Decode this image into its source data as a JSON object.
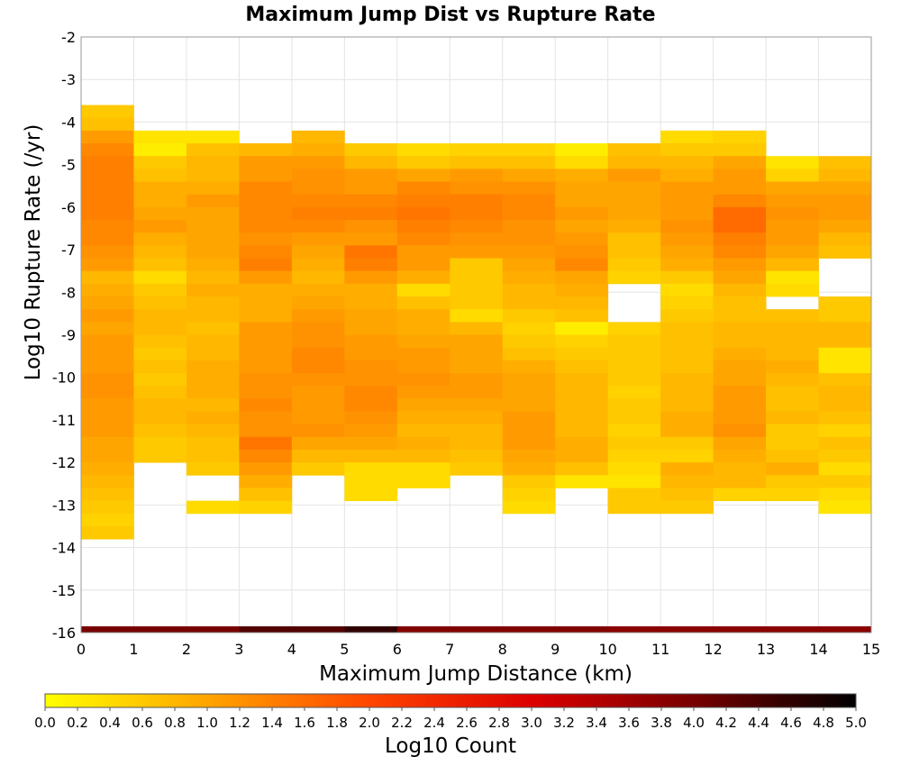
{
  "chart_data": {
    "type": "heatmap",
    "title": "Maximum Jump Dist vs Rupture Rate",
    "xlabel": "Maximum Jump Distance (km)",
    "ylabel": "Log10 Rupture Rate (/yr)",
    "xlim": [
      0,
      15
    ],
    "ylim": [
      -16,
      -2
    ],
    "x_ticks": [
      "0",
      "1",
      "2",
      "3",
      "4",
      "5",
      "6",
      "7",
      "8",
      "9",
      "10",
      "11",
      "12",
      "13",
      "14",
      "15"
    ],
    "y_ticks": [
      "-2",
      "-3",
      "-4",
      "-5",
      "-6",
      "-7",
      "-8",
      "-9",
      "-10",
      "-11",
      "-12",
      "-13",
      "-14",
      "-15",
      "-16"
    ],
    "x_bin_width": 1,
    "y_bin_height": 0.3,
    "grid": true,
    "colorbar": {
      "label": "Log10 Count",
      "min": 0.0,
      "max": 5.0,
      "ticks": [
        "0.0",
        "0.2",
        "0.4",
        "0.6",
        "0.8",
        "1.0",
        "1.2",
        "1.4",
        "1.6",
        "1.8",
        "2.0",
        "2.2",
        "2.4",
        "2.6",
        "2.8",
        "3.0",
        "3.2",
        "3.4",
        "3.6",
        "3.8",
        "4.0",
        "4.2",
        "4.4",
        "4.6",
        "4.8",
        "5.0"
      ],
      "stops": [
        "#ffff00",
        "#ffa500",
        "#ff4500",
        "#dd0000",
        "#770000",
        "#000000"
      ],
      "position": "bottom"
    },
    "columns": [
      {
        "x_start": 0,
        "y_top": -3.6,
        "values": [
          0.6,
          0.7,
          1.1,
          1.3,
          1.4,
          1.4,
          1.4,
          1.4,
          1.4,
          1.3,
          1.3,
          1.2,
          1.1,
          0.8,
          0.9,
          1.0,
          1.1,
          1.0,
          1.1,
          1.1,
          1.1,
          1.2,
          1.2,
          1.1,
          1.1,
          1.1,
          1.0,
          1.0,
          0.9,
          0.8,
          0.7,
          0.6,
          0.5,
          0.6
        ]
      },
      {
        "x_start": 1,
        "y_top": -4.2,
        "values": [
          0.3,
          0.2,
          0.6,
          0.7,
          0.9,
          0.9,
          1.0,
          1.1,
          0.9,
          0.8,
          0.7,
          0.4,
          0.6,
          0.7,
          0.8,
          0.8,
          0.7,
          0.6,
          0.7,
          0.6,
          0.7,
          0.8,
          0.8,
          0.7,
          0.6,
          0.6
        ]
      },
      {
        "x_start": 2,
        "y_top": -4.2,
        "values": [
          0.3,
          0.7,
          0.8,
          0.8,
          0.9,
          1.1,
          1.0,
          1.0,
          1.0,
          1.0,
          0.9,
          0.8,
          0.9,
          0.8,
          0.8,
          0.7,
          0.8,
          0.8,
          0.9,
          0.9,
          0.9,
          0.8,
          0.9,
          0.8,
          0.7,
          0.7,
          0.6,
          0.0,
          0.0,
          0.4
        ]
      },
      {
        "x_start": 3,
        "y_top": -4.5,
        "values": [
          0.8,
          1.1,
          1.1,
          1.3,
          1.3,
          1.3,
          1.3,
          1.2,
          1.3,
          1.4,
          1.1,
          0.9,
          0.9,
          0.9,
          1.1,
          1.1,
          1.1,
          1.1,
          1.2,
          1.2,
          1.3,
          1.2,
          1.2,
          1.5,
          1.3,
          1.1,
          0.9,
          0.7,
          0.5
        ]
      },
      {
        "x_start": 4,
        "y_top": -4.2,
        "values": [
          0.8,
          0.9,
          1.1,
          1.2,
          1.2,
          1.3,
          1.4,
          1.3,
          1.1,
          1.0,
          0.9,
          0.8,
          0.9,
          1.0,
          1.1,
          1.2,
          1.2,
          1.3,
          1.3,
          1.2,
          1.1,
          1.1,
          1.1,
          1.2,
          1.0,
          0.8,
          0.6
        ]
      },
      {
        "x_start": 5,
        "y_top": -4.5,
        "values": [
          0.6,
          0.8,
          1.1,
          1.1,
          1.3,
          1.4,
          1.2,
          1.1,
          1.5,
          1.4,
          1.1,
          0.9,
          0.9,
          1.0,
          1.0,
          1.1,
          1.1,
          1.2,
          1.2,
          1.3,
          1.3,
          1.2,
          1.1,
          1.0,
          0.8,
          0.4,
          0.4,
          0.4
        ]
      },
      {
        "x_start": 6,
        "y_top": -4.5,
        "values": [
          0.4,
          0.6,
          1.0,
          1.3,
          1.4,
          1.5,
          1.4,
          1.3,
          1.1,
          1.1,
          0.9,
          0.4,
          0.7,
          0.9,
          0.9,
          1.0,
          1.1,
          1.1,
          1.2,
          1.1,
          1.0,
          0.9,
          0.8,
          0.9,
          0.8,
          0.4,
          0.4
        ]
      },
      {
        "x_start": 7,
        "y_top": -4.5,
        "values": [
          0.5,
          0.7,
          1.1,
          1.2,
          1.4,
          1.4,
          1.3,
          1.2,
          1.1,
          0.6,
          0.6,
          0.6,
          0.6,
          0.4,
          0.8,
          1.0,
          1.0,
          1.0,
          1.1,
          1.1,
          1.0,
          0.9,
          0.8,
          0.8,
          0.7,
          0.6
        ]
      },
      {
        "x_start": 8,
        "y_top": -4.5,
        "values": [
          0.5,
          0.7,
          1.0,
          1.2,
          1.3,
          1.3,
          1.2,
          1.2,
          1.1,
          1.0,
          0.9,
          0.8,
          0.8,
          0.6,
          0.5,
          0.6,
          0.7,
          0.9,
          1.0,
          1.0,
          1.0,
          1.1,
          1.1,
          1.1,
          1.0,
          0.9,
          0.6,
          0.5,
          0.4
        ]
      },
      {
        "x_start": 9,
        "y_top": -4.5,
        "values": [
          0.2,
          0.4,
          0.9,
          1.0,
          1.0,
          1.1,
          1.0,
          1.1,
          1.2,
          1.3,
          1.0,
          0.9,
          0.8,
          0.7,
          0.2,
          0.5,
          0.6,
          0.7,
          0.8,
          0.8,
          0.8,
          0.8,
          0.8,
          0.9,
          0.9,
          0.7,
          0.3
        ]
      },
      {
        "x_start": 10,
        "y_top": -4.5,
        "values": [
          0.7,
          0.8,
          1.1,
          1.0,
          1.0,
          1.0,
          0.9,
          0.7,
          0.7,
          0.6,
          0.5,
          0.0,
          0.0,
          0.0,
          0.5,
          0.6,
          0.6,
          0.6,
          0.6,
          0.5,
          0.6,
          0.6,
          0.5,
          0.6,
          0.5,
          0.4,
          0.3,
          0.6,
          0.6
        ]
      },
      {
        "x_start": 11,
        "y_top": -4.2,
        "values": [
          0.4,
          0.6,
          0.8,
          0.9,
          1.1,
          1.1,
          1.1,
          1.2,
          1.1,
          1.0,
          0.9,
          0.6,
          0.4,
          0.5,
          0.6,
          0.7,
          0.7,
          0.7,
          0.7,
          0.8,
          0.8,
          0.8,
          0.9,
          0.9,
          0.6,
          0.5,
          0.9,
          0.8,
          0.7,
          0.6
        ]
      },
      {
        "x_start": 12,
        "y_top": -4.2,
        "values": [
          0.5,
          0.6,
          1.0,
          1.1,
          1.1,
          1.3,
          1.6,
          1.6,
          1.4,
          1.3,
          1.1,
          1.0,
          0.8,
          0.7,
          0.7,
          0.8,
          0.8,
          0.9,
          1.0,
          1.0,
          1.1,
          1.1,
          1.1,
          1.2,
          1.0,
          0.9,
          0.8,
          0.8,
          0.5
        ]
      },
      {
        "x_start": 13,
        "y_top": -4.8,
        "values": [
          0.3,
          0.5,
          1.0,
          1.1,
          1.2,
          1.1,
          1.1,
          1.0,
          0.8,
          0.3,
          0.4,
          0.0,
          0.7,
          0.8,
          0.8,
          0.8,
          0.9,
          0.8,
          0.7,
          0.7,
          0.8,
          0.6,
          0.6,
          0.7,
          0.9,
          0.6,
          0.5
        ]
      },
      {
        "x_start": 14,
        "y_top": -4.8,
        "values": [
          0.7,
          0.8,
          1.0,
          1.1,
          1.1,
          1.0,
          0.8,
          0.7,
          0.0,
          0.0,
          0.0,
          0.6,
          0.6,
          0.8,
          0.8,
          0.3,
          0.3,
          0.7,
          0.8,
          0.8,
          0.7,
          0.5,
          0.7,
          0.6,
          0.4,
          0.6,
          0.4,
          0.3
        ]
      }
    ],
    "bottom_strip": {
      "y": -16,
      "segments": [
        {
          "x_start": 0,
          "x_end": 3,
          "value": 4.0
        },
        {
          "x_start": 3,
          "x_end": 5,
          "value": 4.3
        },
        {
          "x_start": 5,
          "x_end": 6,
          "value": 4.6
        },
        {
          "x_start": 6,
          "x_end": 10,
          "value": 3.9
        },
        {
          "x_start": 10,
          "x_end": 15,
          "value": 3.8
        }
      ]
    }
  }
}
